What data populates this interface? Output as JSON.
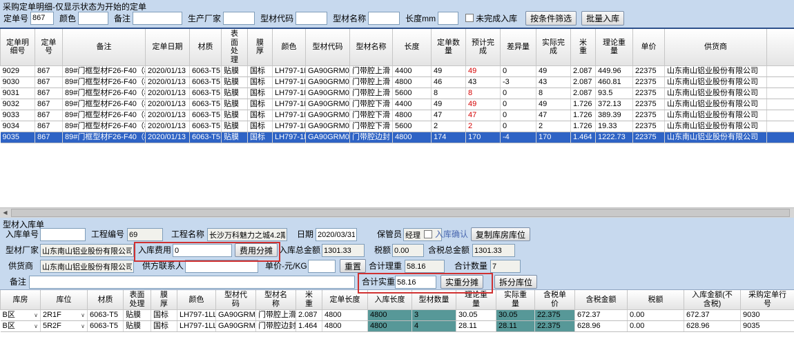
{
  "colors": {
    "selected_row": "#2e63c5",
    "teal_cell": "#579898",
    "red_text": "#d40000",
    "annotation_box": "#d03030"
  },
  "top_panel": {
    "title": "采购定单明细-仅显示状态为开始的定单",
    "filters": {
      "order_no": {
        "label": "定单号",
        "value": "867"
      },
      "color": {
        "label": "颜色",
        "value": ""
      },
      "remark": {
        "label": "备注",
        "value": ""
      },
      "manufacturer": {
        "label": "生产厂家",
        "value": ""
      },
      "profile_code": {
        "label": "型材代码",
        "value": ""
      },
      "profile_name": {
        "label": "型材名称",
        "value": ""
      },
      "length_mm": {
        "label": "长度mm",
        "value": ""
      },
      "unfinished_checkbox_label": "未完成入库",
      "filter_by_condition_button": "按条件筛选",
      "batch_inbound_button": "批量入库"
    },
    "table": {
      "headers": [
        "定单明细号",
        "定单号",
        "备注",
        "定单日期",
        "材质",
        "表面处理",
        "膜厚",
        "颜色",
        "型材代码",
        "型材名称",
        "长度",
        "定单数量",
        "预计完成",
        "差异量",
        "实际完成",
        "米重",
        "理论重量",
        "单价",
        "供货商"
      ],
      "rows": [
        {
          "cells": [
            "9029",
            "867",
            "89#门框型材F26-F40（866+867）",
            "2020/01/13",
            "6063-T5",
            "贴膜",
            "国标",
            "LH797-1LL0",
            "GA90GRM03",
            "门带腔上滑",
            "4400",
            "49",
            "49",
            "0",
            "49",
            "2.087",
            "449.96",
            "22375",
            "山东南山铝业股份有限公司"
          ],
          "forecast_red": true,
          "selected": false
        },
        {
          "cells": [
            "9030",
            "867",
            "89#门框型材F26-F40（866+867）",
            "2020/01/13",
            "6063-T5",
            "贴膜",
            "国标",
            "LH797-1LL0",
            "GA90GRM03",
            "门带腔上滑",
            "4800",
            "46",
            "43",
            "-3",
            "43",
            "2.087",
            "460.81",
            "22375",
            "山东南山铝业股份有限公司"
          ],
          "forecast_red": false,
          "selected": false
        },
        {
          "cells": [
            "9031",
            "867",
            "89#门框型材F26-F40（866+867）",
            "2020/01/13",
            "6063-T5",
            "贴膜",
            "国标",
            "LH797-1LL0",
            "GA90GRM03",
            "门带腔上滑",
            "5600",
            "8",
            "8",
            "0",
            "8",
            "2.087",
            "93.5",
            "22375",
            "山东南山铝业股份有限公司"
          ],
          "forecast_red": true,
          "selected": false
        },
        {
          "cells": [
            "9032",
            "867",
            "89#门框型材F26-F40（866+867）",
            "2020/01/13",
            "6063-T5",
            "贴膜",
            "国标",
            "LH797-1LL0",
            "GA90GRM04",
            "门带腔下滑",
            "4400",
            "49",
            "49",
            "0",
            "49",
            "1.726",
            "372.13",
            "22375",
            "山东南山铝业股份有限公司"
          ],
          "forecast_red": true,
          "selected": false
        },
        {
          "cells": [
            "9033",
            "867",
            "89#门框型材F26-F40（866+867）",
            "2020/01/13",
            "6063-T5",
            "贴膜",
            "国标",
            "LH797-1LL0",
            "GA90GRM04",
            "门带腔下滑",
            "4800",
            "47",
            "47",
            "0",
            "47",
            "1.726",
            "389.39",
            "22375",
            "山东南山铝业股份有限公司"
          ],
          "forecast_red": true,
          "selected": false
        },
        {
          "cells": [
            "9034",
            "867",
            "89#门框型材F26-F40（866+867）",
            "2020/01/13",
            "6063-T5",
            "贴膜",
            "国标",
            "LH797-1LL0",
            "GA90GRM04",
            "门带腔下滑",
            "5600",
            "2",
            "2",
            "0",
            "2",
            "1.726",
            "19.33",
            "22375",
            "山东南山铝业股份有限公司"
          ],
          "forecast_red": true,
          "selected": false
        },
        {
          "cells": [
            "9035",
            "867",
            "89#门框型材F26-F40（866+867）",
            "2020/01/13",
            "6063-T5",
            "贴膜",
            "国标",
            "LH797-1LL0",
            "GA90GRM05",
            "门带腔边封",
            "4800",
            "174",
            "170",
            "-4",
            "170",
            "1.464",
            "1222.73",
            "22375",
            "山东南山铝业股份有限公司"
          ],
          "forecast_red": false,
          "selected": true
        }
      ]
    }
  },
  "bottom_panel": {
    "title": "型材入库单",
    "form": {
      "inbound_no": {
        "label": "入库单号",
        "value": ""
      },
      "project_no": {
        "label": "工程编号",
        "value": "69"
      },
      "project_name": {
        "label": "工程名称",
        "value": "长沙万科魅力之城4.2期"
      },
      "date": {
        "label": "日期",
        "value": "2020/03/31"
      },
      "keeper": {
        "label": "保管员",
        "value": "经理"
      },
      "inbound_confirm_label": "入库确认",
      "copy_warehouse_button": "复制库房库位",
      "profile_factory": {
        "label": "型材厂家",
        "value": "山东南山铝业股份有限公司"
      },
      "inbound_fee": {
        "label": "入库费用",
        "value": "0"
      },
      "fee_allocate_button": "费用分摊",
      "inbound_total": {
        "label": "入库总金额",
        "value": "1301.33"
      },
      "tax": {
        "label": "税额",
        "value": "0.00"
      },
      "tax_incl_total": {
        "label": "含税总金额",
        "value": "1301.33"
      },
      "supplier": {
        "label": "供货商",
        "value": "山东南山铝业股份有限公司"
      },
      "supplier_contact": {
        "label": "供方联系人",
        "value": ""
      },
      "unit_price_kg": {
        "label": "单价-元/KG",
        "value": ""
      },
      "reset_button": "重置",
      "total_theory_weight": {
        "label": "合计理重",
        "value": "58.16"
      },
      "total_qty": {
        "label": "合计数量",
        "value": "7"
      },
      "note": {
        "label": "备注",
        "value": ""
      },
      "total_actual_weight": {
        "label": "合计实重",
        "value": "58.16"
      },
      "actual_weight_allocate_button": "实重分摊",
      "split_location_button": "拆分库位"
    },
    "table": {
      "headers": [
        "库房",
        "库位",
        "材质",
        "表面处理",
        "膜厚",
        "颜色",
        "型材代码",
        "型材名称",
        "米重",
        "定单长度",
        "入库长度",
        "型材数量",
        "理论重量",
        "实际重量",
        "含税单价",
        "含税金额",
        "税额",
        "入库金额(不含税)",
        "采购定单行号"
      ],
      "teal_columns": [
        10,
        11,
        13,
        14
      ],
      "combo_columns": [
        0,
        1
      ],
      "rows": [
        {
          "cells": [
            "B区",
            "2R1F",
            "6063-T5",
            "贴膜",
            "国标",
            "LH797-1LL0",
            "GA90GRM03",
            "门带腔上滑",
            "2.087",
            "4800",
            "4800",
            "3",
            "30.05",
            "30.05",
            "22.375",
            "672.37",
            "0.00",
            "672.37",
            "9030"
          ]
        },
        {
          "cells": [
            "B区",
            "5R2F",
            "6063-T5",
            "贴膜",
            "国标",
            "LH797-1LL0",
            "GA90GRM05",
            "门带腔边封",
            "1.464",
            "4800",
            "4800",
            "4",
            "28.11",
            "28.11",
            "22.375",
            "628.96",
            "0.00",
            "628.96",
            "9035"
          ]
        }
      ]
    }
  }
}
